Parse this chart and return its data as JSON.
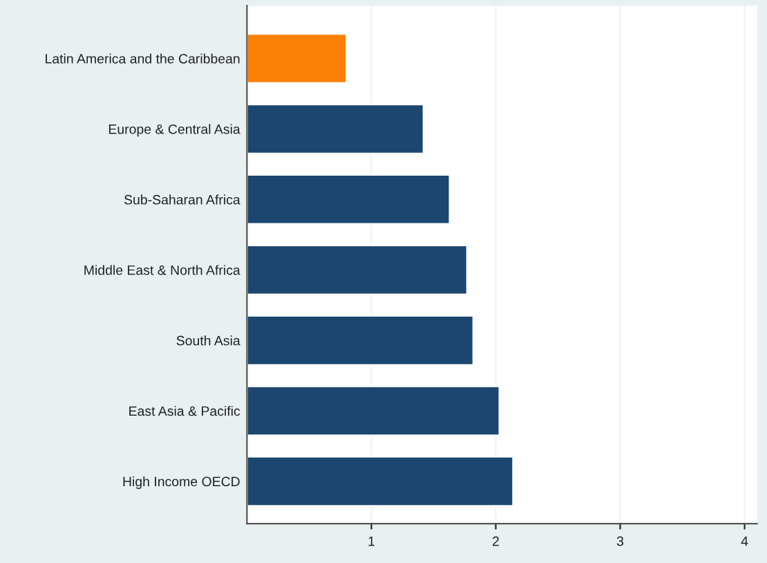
{
  "chart_data": {
    "type": "bar",
    "orientation": "horizontal",
    "categories": [
      "Latin America and the Caribbean",
      "Europe & Central Asia",
      "Sub-Saharan Africa",
      "Middle East & North Africa",
      "South Asia",
      "East Asia & Pacific",
      "High Income OECD"
    ],
    "values": [
      0.8,
      1.42,
      1.63,
      1.77,
      1.82,
      2.03,
      2.14
    ],
    "colors": [
      "#fb8005",
      "#1b466f",
      "#1b466f",
      "#1b466f",
      "#1b466f",
      "#1b466f",
      "#1b466f"
    ],
    "xlim": [
      0,
      4.1
    ],
    "xticks": [
      1,
      2,
      3,
      4
    ],
    "grid": "x"
  }
}
